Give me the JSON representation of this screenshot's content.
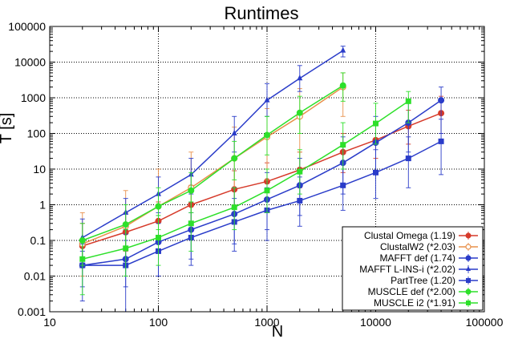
{
  "chart_data": {
    "type": "line",
    "title": "Runtimes",
    "xlabel": "N",
    "ylabel": "T [s]",
    "xscale": "log",
    "yscale": "log",
    "xlim": [
      10,
      100000
    ],
    "ylim": [
      0.001,
      100000
    ],
    "grid": true,
    "legend_position": "bottom-right",
    "xticks": [
      {
        "value": 10,
        "label": "10"
      },
      {
        "value": 100,
        "label": "100"
      },
      {
        "value": 1000,
        "label": "1000"
      },
      {
        "value": 10000,
        "label": "10000"
      },
      {
        "value": 100000,
        "label": "100000"
      }
    ],
    "yticks": [
      {
        "value": 0.001,
        "label": "0.001"
      },
      {
        "value": 0.01,
        "label": "0.01"
      },
      {
        "value": 0.1,
        "label": "0.1"
      },
      {
        "value": 1,
        "label": "1"
      },
      {
        "value": 10,
        "label": "10"
      },
      {
        "value": 100,
        "label": "100"
      },
      {
        "value": 1000,
        "label": "1000"
      },
      {
        "value": 10000,
        "label": "10000"
      },
      {
        "value": 100000,
        "label": "100000"
      }
    ],
    "series": [
      {
        "name": "Clustal Omega (1.19)",
        "color": "#d63a2a",
        "marker": "circle",
        "x": [
          20,
          50,
          100,
          200,
          500,
          1000,
          2000,
          5000,
          10000,
          20000,
          40000
        ],
        "y": [
          0.07,
          0.17,
          0.35,
          1.0,
          2.7,
          4.5,
          9.5,
          30,
          65,
          160,
          370
        ],
        "err": [
          [
            0.02,
            0.3
          ],
          [
            0.05,
            0.6
          ],
          [
            0.1,
            1.2
          ],
          [
            0.3,
            3.5
          ],
          [
            1.0,
            9
          ],
          [
            1.5,
            15
          ],
          [
            3,
            30
          ],
          [
            8,
            100
          ],
          [
            20,
            200
          ],
          [
            50,
            450
          ],
          [
            100,
            1100
          ]
        ]
      },
      {
        "name": "ClustalW2 (*2.03)",
        "color": "#e8904a",
        "marker": "open-circle",
        "x": [
          20,
          50,
          100,
          200,
          500,
          1000,
          2000,
          5000
        ],
        "y": [
          0.08,
          0.25,
          0.9,
          3.0,
          20,
          80,
          300,
          2000
        ],
        "err": [
          [
            0.01,
            0.6
          ],
          [
            0.02,
            2.5
          ],
          [
            0.05,
            10
          ],
          [
            0.2,
            30
          ],
          [
            1,
            150
          ],
          [
            5,
            500
          ],
          [
            30,
            1800
          ],
          [
            300,
            5000
          ]
        ]
      },
      {
        "name": "MAFFT def (1.74)",
        "color": "#2a3cc9",
        "marker": "circle",
        "x": [
          20,
          50,
          100,
          200,
          500,
          1000,
          2000,
          5000,
          10000,
          20000,
          40000
        ],
        "y": [
          0.02,
          0.03,
          0.09,
          0.2,
          0.55,
          1.4,
          3.5,
          15,
          55,
          200,
          850
        ],
        "err": [
          [
            0.005,
            0.08
          ],
          [
            0.005,
            0.2
          ],
          [
            0.01,
            0.6
          ],
          [
            0.03,
            1.2
          ],
          [
            0.08,
            3
          ],
          [
            0.2,
            8
          ],
          [
            0.5,
            20
          ],
          [
            2,
            80
          ],
          [
            8,
            300
          ],
          [
            30,
            900
          ],
          [
            100,
            2000
          ]
        ]
      },
      {
        "name": "MAFFT L-INS-i (*2.02)",
        "color": "#2a3cc9",
        "marker": "triangle",
        "x": [
          20,
          50,
          100,
          200,
          500,
          1000,
          2000,
          5000
        ],
        "y": [
          0.12,
          0.6,
          2.0,
          7.0,
          100,
          850,
          3500,
          21000
        ],
        "err": [
          [
            0.03,
            0.4
          ],
          [
            0.15,
            1.5
          ],
          [
            0.5,
            6
          ],
          [
            2,
            20
          ],
          [
            30,
            300
          ],
          [
            300,
            2500
          ],
          [
            1500,
            8000
          ],
          [
            14000,
            28000
          ]
        ]
      },
      {
        "name": "PartTree (1.20)",
        "color": "#2a3cc9",
        "marker": "square",
        "x": [
          20,
          50,
          100,
          200,
          500,
          1000,
          2000,
          5000,
          10000,
          20000,
          40000
        ],
        "y": [
          0.02,
          0.02,
          0.05,
          0.12,
          0.33,
          0.7,
          1.3,
          3.5,
          8,
          20,
          60
        ],
        "err": [
          [
            0.002,
            0.05
          ],
          [
            0.001,
            0.1
          ],
          [
            0.01,
            0.3
          ],
          [
            0.02,
            0.6
          ],
          [
            0.05,
            1.5
          ],
          [
            0.1,
            3
          ],
          [
            0.25,
            6
          ],
          [
            0.7,
            15
          ],
          [
            1.5,
            35
          ],
          [
            3,
            80
          ],
          [
            7,
            250
          ]
        ]
      },
      {
        "name": "MUSCLE def (*2.00)",
        "color": "#2de02a",
        "marker": "circle",
        "x": [
          20,
          50,
          100,
          200,
          500,
          1000,
          2000,
          5000
        ],
        "y": [
          0.1,
          0.28,
          0.9,
          2.5,
          20,
          90,
          380,
          2200
        ],
        "err": [
          [
            0.02,
            0.3
          ],
          [
            0.07,
            1.0
          ],
          [
            0.2,
            3
          ],
          [
            0.6,
            8
          ],
          [
            5,
            60
          ],
          [
            25,
            300
          ],
          [
            100,
            1100
          ],
          [
            800,
            5000
          ]
        ]
      },
      {
        "name": "MUSCLE i2 (*1.91)",
        "color": "#2de02a",
        "marker": "square",
        "x": [
          20,
          50,
          100,
          200,
          500,
          1000,
          2000,
          5000,
          10000,
          20000
        ],
        "y": [
          0.03,
          0.06,
          0.12,
          0.3,
          0.85,
          2.5,
          8.5,
          48,
          190,
          800
        ],
        "err": [
          [
            0.003,
            0.1
          ],
          [
            0.01,
            0.2
          ],
          [
            0.02,
            0.5
          ],
          [
            0.05,
            1.2
          ],
          [
            0.2,
            3
          ],
          [
            0.6,
            10
          ],
          [
            2,
            35
          ],
          [
            10,
            200
          ],
          [
            50,
            700
          ],
          [
            200,
            1500
          ]
        ]
      }
    ]
  }
}
